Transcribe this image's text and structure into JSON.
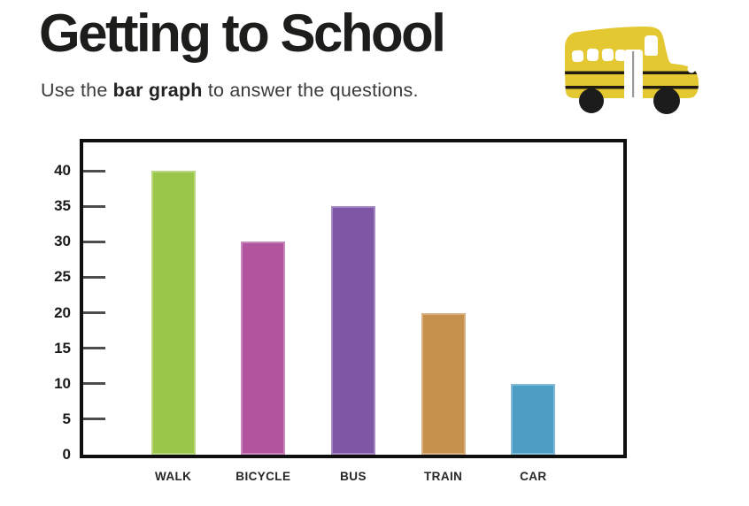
{
  "header": {
    "title": "Getting to School",
    "subtitle_prefix": "Use the ",
    "subtitle_bold": "bar graph",
    "subtitle_suffix": " to answer the questions."
  },
  "icons": {
    "school_bus": {
      "name": "school-bus-icon",
      "body_color": "#e3c832",
      "window_color": "#ffffff",
      "wheel_color": "#1c1c1c",
      "stripe_color": "#201c10",
      "door_line_color": "#9a9a9a"
    }
  },
  "chart_data": {
    "type": "bar",
    "title": "Getting to School",
    "categories": [
      "WALK",
      "BICYCLE",
      "BUS",
      "TRAIN",
      "CAR"
    ],
    "values": [
      40,
      30,
      35,
      20,
      10
    ],
    "bar_colors": [
      "#9ac64a",
      "#b2559f",
      "#7d57a5",
      "#c6904d",
      "#4d9ec4"
    ],
    "xlabel": "",
    "ylabel": "",
    "ylim": [
      0,
      44
    ],
    "yticks": [
      0,
      5,
      10,
      15,
      20,
      25,
      30,
      35,
      40
    ],
    "grid": false,
    "legend": false,
    "frame_color": "#0f0f0f",
    "tick_color": "#4d4d4d"
  }
}
